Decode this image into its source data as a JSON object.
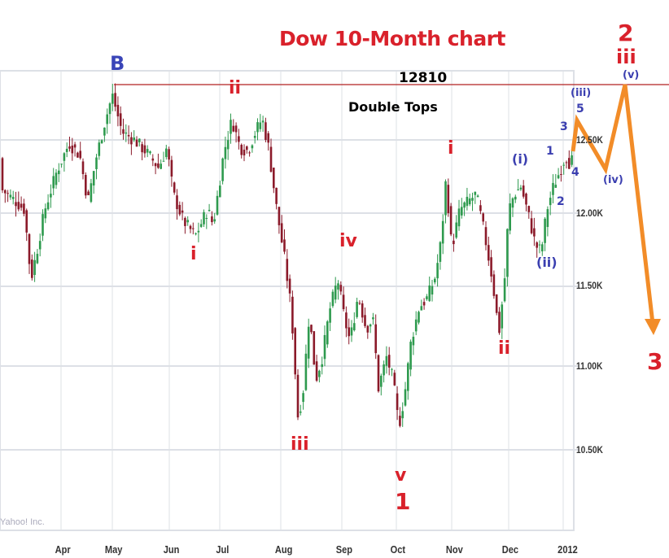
{
  "title": "Dow 10-Month chart",
  "credit": "Yahoo! Inc.",
  "resistance": {
    "label": "12810",
    "note": "Double Tops",
    "color": "#b22222"
  },
  "colors": {
    "up": "#2e9a4e",
    "down": "#8b1a2a",
    "projection": "#f28c28",
    "red_label": "#d9212b",
    "blue_label": "#3b3fb0",
    "grid": "#dde0e6"
  },
  "annotations": {
    "B": "B",
    "wave_i_top": "ii",
    "wave_i_low": "i",
    "wave_iii": "iii",
    "wave_iv": "iv",
    "wave_v": "v",
    "wave_1": "1",
    "wave_i_nov": "i",
    "wave_ii_nov": "ii",
    "sub_i": "(i)",
    "sub_ii": "(ii)",
    "minor_1": "1",
    "minor_2": "2",
    "minor_3": "3",
    "minor_4": "4",
    "minor_5": "5",
    "sub_iii": "(iii)",
    "sub_iv": "(iv)",
    "sub_v": "(v)",
    "wave_2": "2",
    "wave_iii_top": "iii",
    "wave_3": "3"
  },
  "chart_data": {
    "type": "candlestick",
    "title": "Dow 10-Month chart",
    "xlabel": "",
    "ylabel": "",
    "x_ticks": [
      "Apr",
      "May",
      "Jun",
      "Jul",
      "Aug",
      "Sep",
      "Oct",
      "Nov",
      "Dec",
      "2012"
    ],
    "y_ticks": [
      "12.50K",
      "12.00K",
      "11.50K",
      "11.00K",
      "10.50K"
    ],
    "ylim": [
      10300,
      12900
    ],
    "grid": true,
    "horizontal_line": {
      "value": 12810,
      "label": "12810",
      "note": "Double Tops"
    },
    "approx_closes": [
      {
        "x": "Mar-mid",
        "y": 12150
      },
      {
        "x": "Mar-late",
        "y": 11600
      },
      {
        "x": "Apr-early",
        "y": 12050
      },
      {
        "x": "Apr-late",
        "y": 12450
      },
      {
        "x": "May-early",
        "y": 12810
      },
      {
        "x": "May-late",
        "y": 12400
      },
      {
        "x": "Jun-mid",
        "y": 11900
      },
      {
        "x": "Jul-early",
        "y": 12650
      },
      {
        "x": "Jul-late",
        "y": 12600
      },
      {
        "x": "Aug-early",
        "y": 11400
      },
      {
        "x": "Aug-mid",
        "y": 10720
      },
      {
        "x": "Aug-late",
        "y": 11500
      },
      {
        "x": "Sep-early",
        "y": 11600
      },
      {
        "x": "Sep-late",
        "y": 10800
      },
      {
        "x": "Oct-early",
        "y": 10400
      },
      {
        "x": "Oct-late",
        "y": 12200
      },
      {
        "x": "Nov-late",
        "y": 11250
      },
      {
        "x": "Dec-early",
        "y": 12150
      },
      {
        "x": "Dec-mid",
        "y": 11800
      },
      {
        "x": "Dec-late",
        "y": 12250
      },
      {
        "x": "2012-early",
        "y": 12400
      }
    ],
    "projection": {
      "color": "#f28c28",
      "points": [
        {
          "label": "(iii) 5",
          "y": 12550
        },
        {
          "label": "(iv)",
          "y": 12250
        },
        {
          "label": "(v)",
          "y": 12810
        },
        {
          "label": "3",
          "y": 11200
        }
      ]
    },
    "wave_labels": [
      "B",
      "i",
      "ii",
      "iii",
      "iv",
      "v",
      "1",
      "i",
      "ii",
      "(i)",
      "(ii)",
      "1",
      "2",
      "3",
      "4",
      "5",
      "(iii)",
      "(iv)",
      "(v)",
      "2",
      "iii",
      "3"
    ]
  }
}
